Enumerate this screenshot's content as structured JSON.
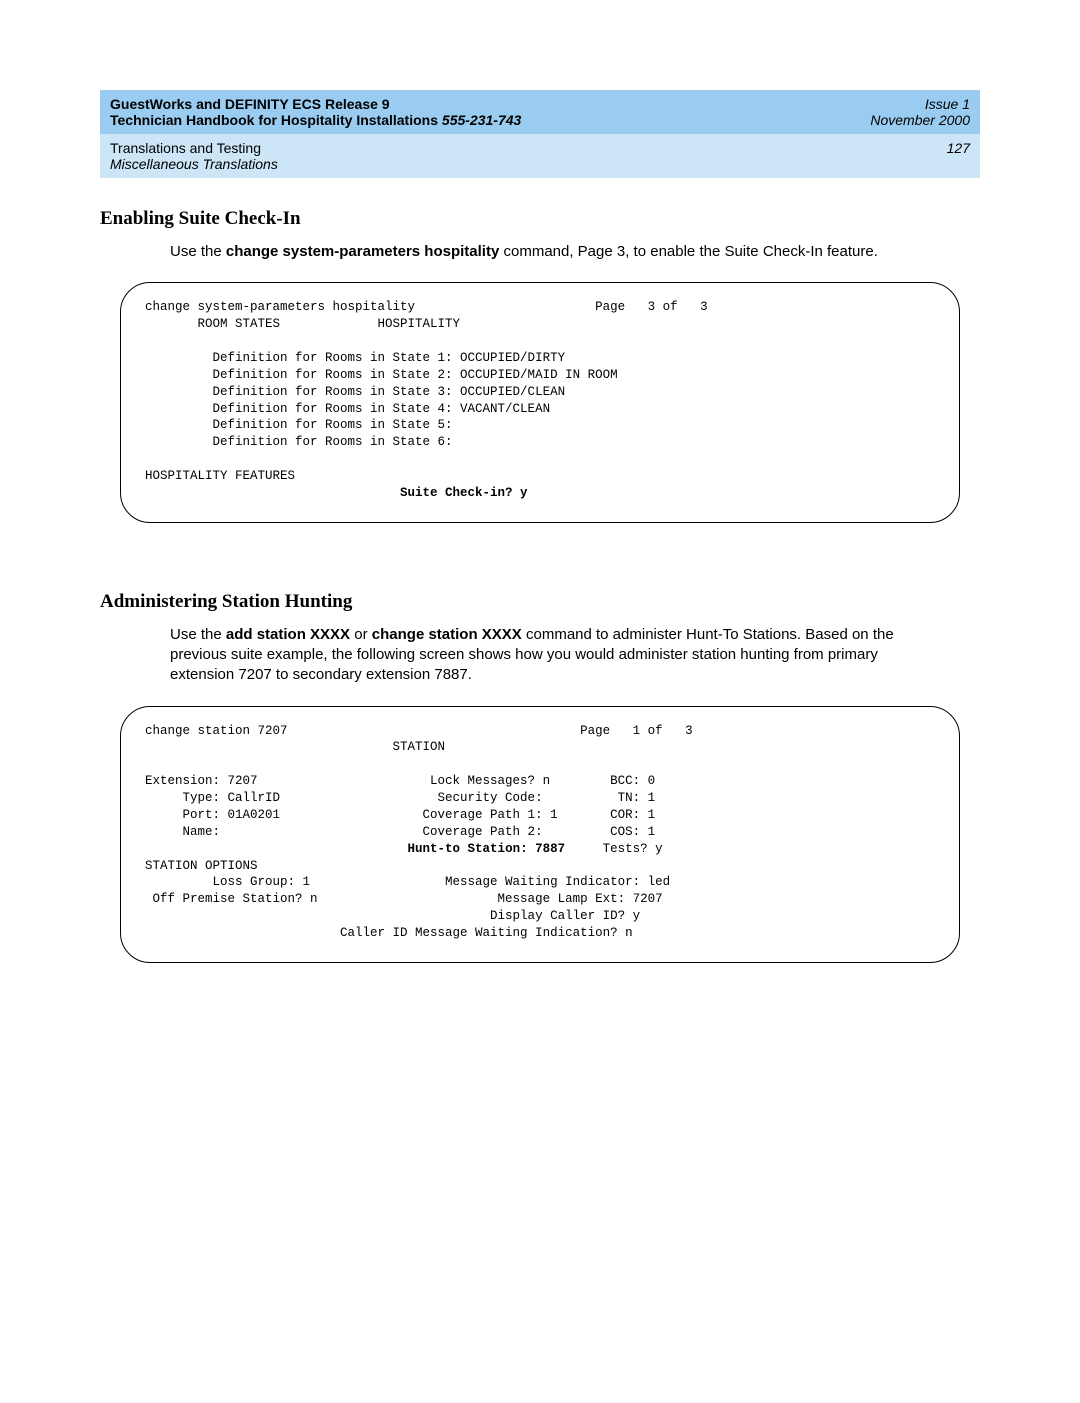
{
  "header": {
    "title_line1": "GuestWorks and DEFINITY ECS Release 9",
    "issue": "Issue 1",
    "title_line2_a": "Technician Handbook for Hospitality Installations  ",
    "title_line2_docnum": "555-231-743",
    "date": "November 2000",
    "sub_line1": "Translations and Testing",
    "sub_line2": "Miscellaneous Translations",
    "page_number": "127"
  },
  "section1": {
    "title": "Enabling Suite Check-In",
    "para_a": "Use the ",
    "para_cmd": "change system-parameters hospitality",
    "para_b": " command, Page 3, to enable the Suite Check-In feature."
  },
  "terminal1": {
    "line1": "change system-parameters hospitality                        Page   3 of   3",
    "line2": "       ROOM STATES             HOSPITALITY",
    "blank1": "",
    "line3": "         Definition for Rooms in State 1: OCCUPIED/DIRTY",
    "line4": "         Definition for Rooms in State 2: OCCUPIED/MAID IN ROOM",
    "line5": "         Definition for Rooms in State 3: OCCUPIED/CLEAN",
    "line6": "         Definition for Rooms in State 4: VACANT/CLEAN",
    "line7": "         Definition for Rooms in State 5:",
    "line8": "         Definition for Rooms in State 6:",
    "blank2": "",
    "line9": "HOSPITALITY FEATURES",
    "line10": "                                  Suite Check-in? y"
  },
  "section2": {
    "title": "Administering Station Hunting",
    "para_a": "Use the ",
    "para_cmd1": "add station XXXX",
    "para_mid": " or ",
    "para_cmd2": "change station XXXX",
    "para_b": " command to administer Hunt-To Stations. Based on the previous suite example, the following screen shows how you would administer station hunting from primary extension 7207 to secondary extension 7887."
  },
  "terminal2": {
    "line1": "change station 7207                                       Page   1 of   3",
    "line2": "                                 STATION",
    "blank1": "",
    "line3": "Extension: 7207                       Lock Messages? n        BCC: 0",
    "line4": "     Type: CallrID                     Security Code:          TN: 1",
    "line5": "     Port: 01A0201                   Coverage Path 1: 1       COR: 1",
    "line6": "     Name:                           Coverage Path 2:         COS: 1",
    "line7a": "                                   ",
    "line7b": "Hunt-to Station: 7887",
    "line7c": "     Tests? y",
    "line8": "STATION OPTIONS",
    "line9": "         Loss Group: 1                  Message Waiting Indicator: led",
    "line10": " Off Premise Station? n                        Message Lamp Ext: 7207",
    "line11": "                                              Display Caller ID? y",
    "line12": "                          Caller ID Message Waiting Indication? n"
  }
}
